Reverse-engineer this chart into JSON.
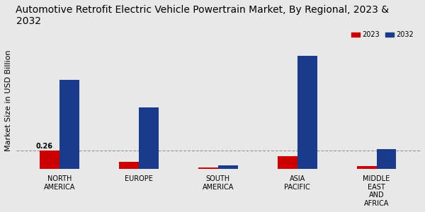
{
  "title": "Automotive Retrofit Electric Vehicle Powertrain Market, By Regional, 2023 &\n2032",
  "ylabel": "Market Size in USD Billion",
  "categories": [
    "NORTH\nAMERICA",
    "EUROPE",
    "SOUTH\nAMERICA",
    "ASIA\nPACIFIC",
    "MIDDLE\nEAST\nAND\nAFRICA"
  ],
  "values_2023": [
    0.26,
    0.1,
    0.02,
    0.18,
    0.04
  ],
  "values_2032": [
    1.3,
    0.9,
    0.05,
    1.65,
    0.28
  ],
  "color_2023": "#cc0000",
  "color_2032": "#1a3a8c",
  "annotation_text": "0.26",
  "annotation_region": 0,
  "background_color": "#e8e8e8",
  "bar_width": 0.25,
  "ylim": [
    0,
    2.0
  ],
  "legend_labels": [
    "2023",
    "2032"
  ],
  "dashed_line_y": 0.26,
  "title_fontsize": 10,
  "axis_label_fontsize": 8,
  "tick_fontsize": 7
}
